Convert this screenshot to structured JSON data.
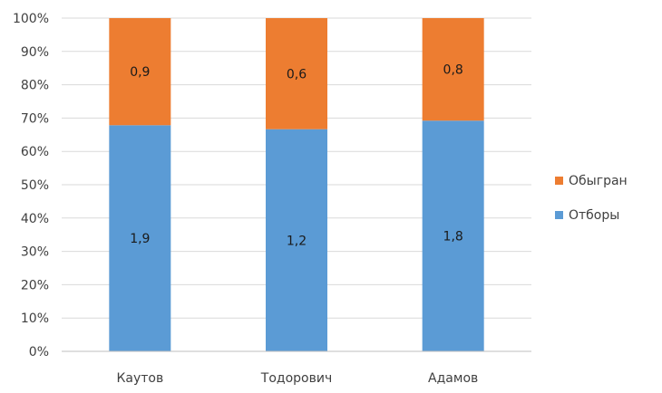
{
  "chart_data": {
    "type": "bar",
    "stacked": true,
    "normalized": true,
    "categories": [
      "Каутов",
      "Тодорович",
      "Адамов"
    ],
    "series": [
      {
        "name": "Отборы",
        "values": [
          1.9,
          1.2,
          1.8
        ],
        "labels": [
          "1,9",
          "1,2",
          "1,8"
        ],
        "color": "#5B9BD5"
      },
      {
        "name": "Обыгран",
        "values": [
          0.9,
          0.6,
          0.8
        ],
        "labels": [
          "0,9",
          "0,6",
          "0,8"
        ],
        "color": "#ED7D31"
      }
    ],
    "y_ticks": [
      "0%",
      "10%",
      "20%",
      "30%",
      "40%",
      "50%",
      "60%",
      "70%",
      "80%",
      "90%",
      "100%"
    ],
    "ylim": [
      0,
      100
    ],
    "grid": true,
    "legend": {
      "position": "right",
      "order": [
        "Обыгран",
        "Отборы"
      ]
    }
  }
}
